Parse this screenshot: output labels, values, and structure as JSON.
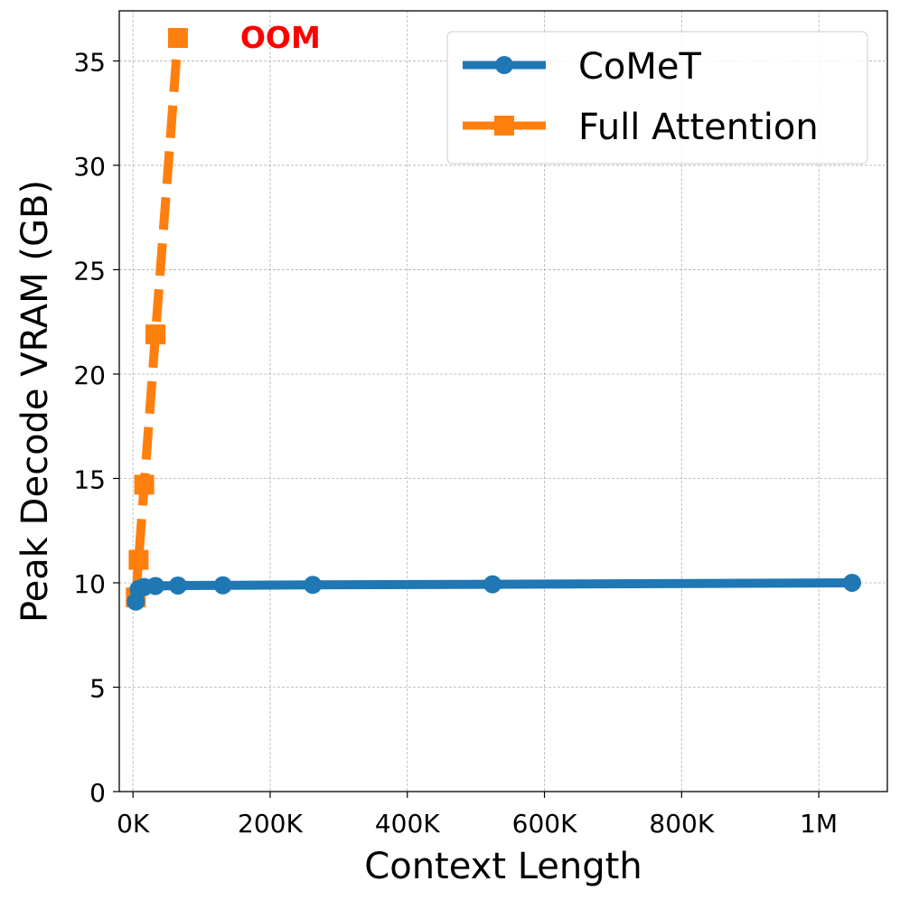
{
  "chart_data": {
    "type": "line",
    "title": "",
    "xlabel": "Context Length",
    "ylabel": "Peak Decode VRAM (GB)",
    "xlim": [
      -20000,
      1100000
    ],
    "ylim": [
      0,
      37.4
    ],
    "x_ticks": [
      {
        "value": 0,
        "label": "0K"
      },
      {
        "value": 200000,
        "label": "200K"
      },
      {
        "value": 400000,
        "label": "400K"
      },
      {
        "value": 600000,
        "label": "600K"
      },
      {
        "value": 800000,
        "label": "800K"
      },
      {
        "value": 1000000,
        "label": "1M"
      }
    ],
    "y_ticks": [
      {
        "value": 0,
        "label": "0"
      },
      {
        "value": 5,
        "label": "5"
      },
      {
        "value": 10,
        "label": "10"
      },
      {
        "value": 15,
        "label": "15"
      },
      {
        "value": 20,
        "label": "20"
      },
      {
        "value": 25,
        "label": "25"
      },
      {
        "value": 30,
        "label": "30"
      },
      {
        "value": 35,
        "label": "35"
      }
    ],
    "grid": true,
    "legend_position": "top-right",
    "series": [
      {
        "name": "CoMeT",
        "color": "#1f77b4",
        "line_style": "solid",
        "marker": "circle",
        "x": [
          4096,
          8192,
          16384,
          32768,
          65536,
          131072,
          262144,
          524288,
          1048576
        ],
        "y": [
          9.1,
          9.7,
          9.8,
          9.85,
          9.87,
          9.88,
          9.9,
          9.93,
          10.0
        ]
      },
      {
        "name": "Full Attention",
        "color": "#ff7f0e",
        "line_style": "dashed",
        "marker": "square",
        "x": [
          4096,
          8192,
          16384,
          32768,
          65536
        ],
        "y": [
          9.3,
          11.1,
          14.7,
          21.9,
          36.1
        ]
      }
    ],
    "annotations": [
      {
        "text": "OOM",
        "x": 215000,
        "y": 36.1,
        "color": "#ff0000"
      }
    ]
  }
}
